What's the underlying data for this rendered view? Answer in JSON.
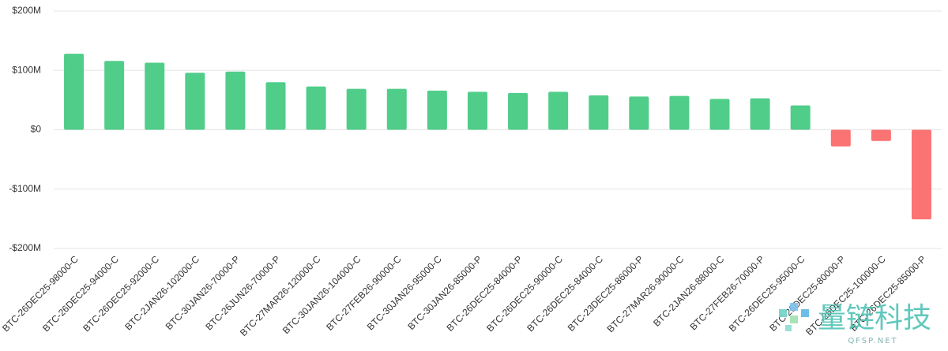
{
  "chart_data": {
    "type": "bar",
    "categories": [
      "BTC-26DEC25-98000-C",
      "BTC-26DEC25-94000-C",
      "BTC-26DEC25-92000-C",
      "BTC-2JAN26-102000-C",
      "BTC-30JAN26-70000-P",
      "BTC-26JUN26-70000-P",
      "BTC-27MAR26-120000-C",
      "BTC-30JAN26-104000-C",
      "BTC-27FEB26-90000-C",
      "BTC-30JAN26-95000-C",
      "BTC-30JAN26-85000-P",
      "BTC-26DEC25-84000-P",
      "BTC-26DEC25-90000-C",
      "BTC-26DEC25-84000-C",
      "BTC-23DEC25-86000-P",
      "BTC-27MAR26-90000-C",
      "BTC-2JAN26-88000-C",
      "BTC-27FEB26-70000-P",
      "BTC-26DEC25-95000-C",
      "BTC-26DEC25-80000-P",
      "BTC-26DEC25-100000-C",
      "BTC-26DEC25-85000-P"
    ],
    "values": [
      128,
      116,
      113,
      96,
      98,
      80,
      73,
      69,
      69,
      66,
      64,
      62,
      64,
      58,
      56,
      57,
      52,
      53,
      41,
      -28,
      -19,
      -151
    ],
    "colors": {
      "positive": "#50cd89",
      "negative": "#fb7373"
    },
    "ylim": [
      -200,
      200
    ],
    "yticks": [
      {
        "value": 200,
        "label": "$200M"
      },
      {
        "value": 100,
        "label": "$100M"
      },
      {
        "value": 0,
        "label": "$0"
      },
      {
        "value": -100,
        "label": "-$100M"
      },
      {
        "value": -200,
        "label": "-$200M"
      }
    ],
    "grid": true
  },
  "watermark": {
    "text": "量链科技",
    "site": "QFSP.NET"
  }
}
